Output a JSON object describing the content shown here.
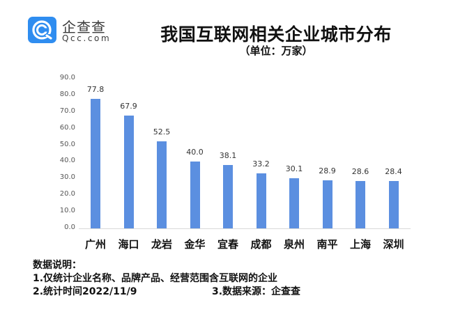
{
  "logo": {
    "icon": "qcc-logo-icon",
    "name_cn": "企查查",
    "name_en": "Qcc.com",
    "color": "#2f8df0"
  },
  "header": {
    "title": "我国互联网相关企业城市分布",
    "subtitle": "（单位：万家）"
  },
  "chart_data": {
    "type": "bar",
    "title": "我国互联网相关企业城市分布",
    "subtitle": "（单位：万家）",
    "xlabel": "",
    "ylabel": "",
    "categories": [
      "广州",
      "海口",
      "龙岩",
      "金华",
      "宜春",
      "成都",
      "泉州",
      "南平",
      "上海",
      "深圳"
    ],
    "values": [
      77.8,
      67.9,
      52.5,
      40.0,
      38.1,
      33.2,
      30.1,
      28.9,
      28.6,
      28.4
    ],
    "value_labels": [
      "77.8",
      "67.9",
      "52.5",
      "40.0",
      "38.1",
      "33.2",
      "30.1",
      "28.9",
      "28.6",
      "28.4"
    ],
    "yticks": [
      "0.0",
      "10.0",
      "20.0",
      "30.0",
      "40.0",
      "50.0",
      "60.0",
      "70.0",
      "80.0",
      "90.0"
    ],
    "ylim": [
      0,
      90
    ],
    "grid": false,
    "legend": "none",
    "bar_color": "#5b8fe0"
  },
  "notes": {
    "heading": "数据说明：",
    "line1": "1.仅统计企业名称、品牌产品、经营范围含互联网的企业",
    "line2": "2.统计时间2022/11/9",
    "line3": "3.数据来源：企查查"
  }
}
